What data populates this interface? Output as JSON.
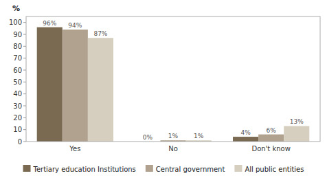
{
  "chart_data": {
    "type": "bar",
    "y_label": "%",
    "categories": [
      "Yes",
      "No",
      "Don't know"
    ],
    "series": [
      {
        "name": "Tertiary education Institutions",
        "color": "#7a6a52",
        "values": [
          96,
          0,
          4
        ],
        "value_labels": [
          "96%",
          "0%",
          "4%"
        ]
      },
      {
        "name": "Central government",
        "color": "#b0a28e",
        "values": [
          94,
          1,
          6
        ],
        "value_labels": [
          "94%",
          "1%",
          "6%"
        ]
      },
      {
        "name": "All public entities",
        "color": "#d6cfc0",
        "values": [
          87,
          1,
          13
        ],
        "value_labels": [
          "87%",
          "1%",
          "13%"
        ]
      }
    ],
    "ylim": [
      0,
      105
    ],
    "yticks": [
      0,
      10,
      20,
      30,
      40,
      50,
      60,
      70,
      80,
      90,
      100
    ],
    "grid": false,
    "legend": "bottom",
    "data_labels": true
  }
}
